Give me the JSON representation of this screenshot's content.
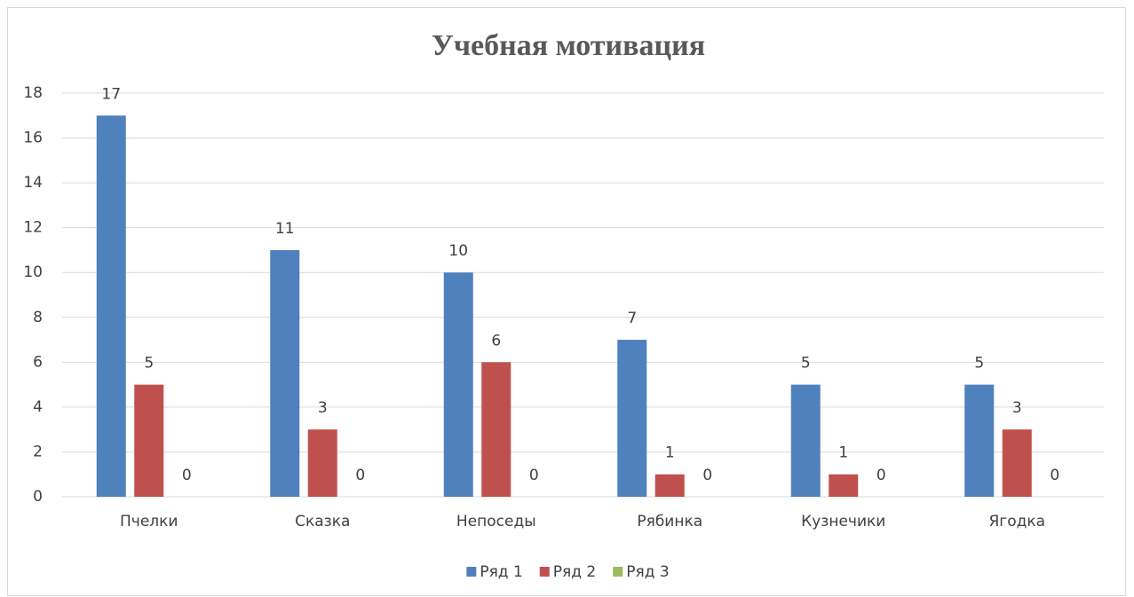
{
  "chart_data": {
    "type": "bar",
    "title": "Учебная мотивация",
    "categories": [
      "Пчелки",
      "Сказка",
      "Непоседы",
      "Рябинка",
      "Кузнечики",
      "Ягодка"
    ],
    "series": [
      {
        "name": "Ряд 1",
        "color": "#4f81bd",
        "values": [
          17,
          11,
          10,
          7,
          5,
          5
        ]
      },
      {
        "name": "Ряд 2",
        "color": "#c0504d",
        "values": [
          5,
          3,
          6,
          1,
          1,
          3
        ]
      },
      {
        "name": "Ряд 3",
        "color": "#9bbb59",
        "values": [
          0,
          0,
          0,
          0,
          0,
          0
        ]
      }
    ],
    "ylim": [
      0,
      18
    ],
    "yticks": [
      0,
      2,
      4,
      6,
      8,
      10,
      12,
      14,
      16,
      18
    ],
    "grid": true,
    "legend": "bottom",
    "data_labels": true
  }
}
